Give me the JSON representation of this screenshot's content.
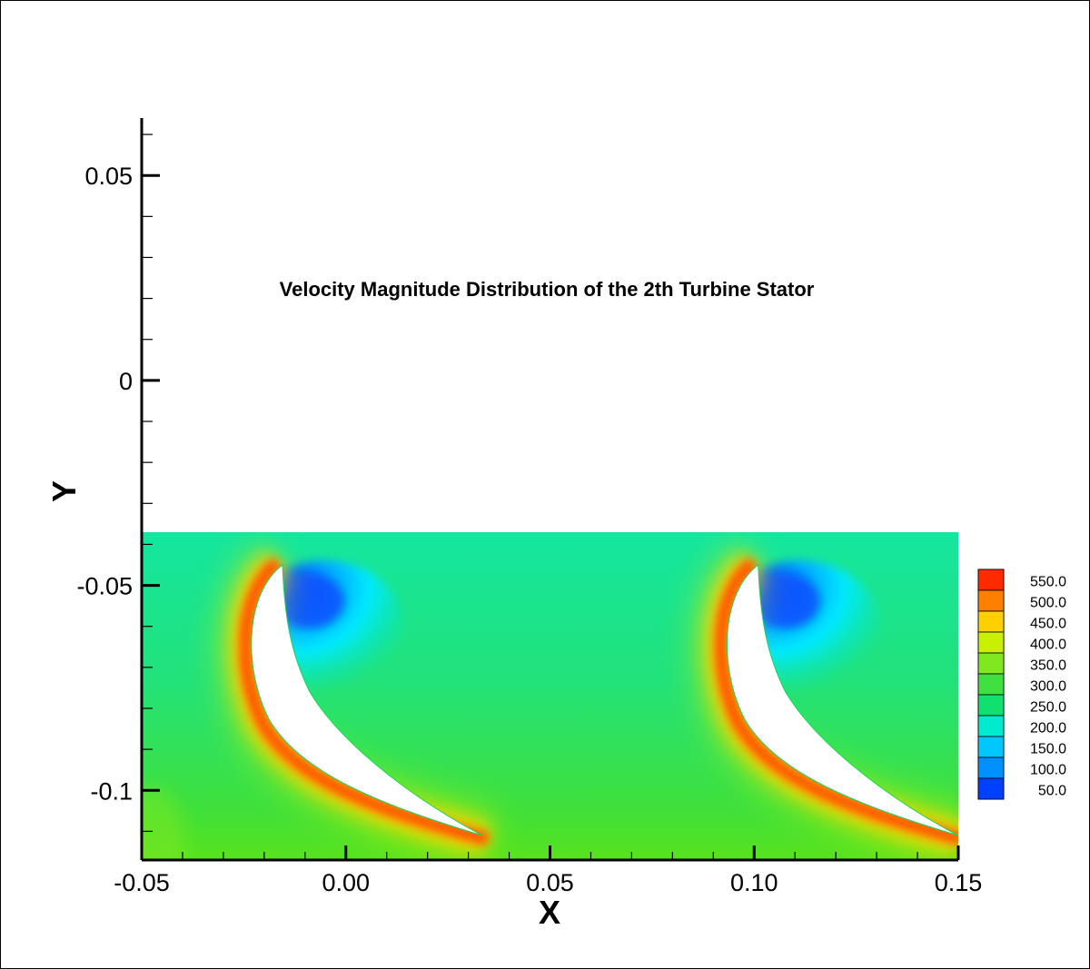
{
  "chart_data": {
    "type": "heatmap",
    "title": "Velocity Magnitude Distribution of the 2th Turbine Stator",
    "xlabel": "X",
    "ylabel": "Y",
    "xlim": [
      -0.05,
      0.15
    ],
    "ylim": [
      -0.117,
      0.064
    ],
    "x_ticks": [
      {
        "value": -0.05,
        "label": "-0.05"
      },
      {
        "value": 0.0,
        "label": "0.00"
      },
      {
        "value": 0.05,
        "label": "0.05"
      },
      {
        "value": 0.1,
        "label": "0.10"
      },
      {
        "value": 0.15,
        "label": "0.15"
      }
    ],
    "y_ticks": [
      {
        "value": 0.05,
        "label": "0.05"
      },
      {
        "value": 0.0,
        "label": "0"
      },
      {
        "value": -0.05,
        "label": "-0.05"
      },
      {
        "value": -0.1,
        "label": "-0.1"
      }
    ],
    "field": {
      "variable": "Velocity Magnitude",
      "x_range": [
        -0.05,
        0.15
      ],
      "y_range": [
        -0.117,
        -0.037
      ],
      "blade_pitch": 0.1165,
      "blade_count": 2
    },
    "legend": {
      "placement": "right",
      "levels": [
        550.0,
        500.0,
        450.0,
        400.0,
        350.0,
        300.0,
        250.0,
        200.0,
        150.0,
        100.0,
        50.0
      ],
      "labels": [
        "550.0",
        "500.0",
        "450.0",
        "400.0",
        "350.0",
        "300.0",
        "250.0",
        "200.0",
        "150.0",
        "100.0",
        "50.0"
      ],
      "colors": [
        "#ff2a00",
        "#ff8000",
        "#ffd000",
        "#c8f000",
        "#80e820",
        "#40e040",
        "#10e070",
        "#00ead0",
        "#00c8ff",
        "#0090ff",
        "#0040ff"
      ]
    }
  }
}
